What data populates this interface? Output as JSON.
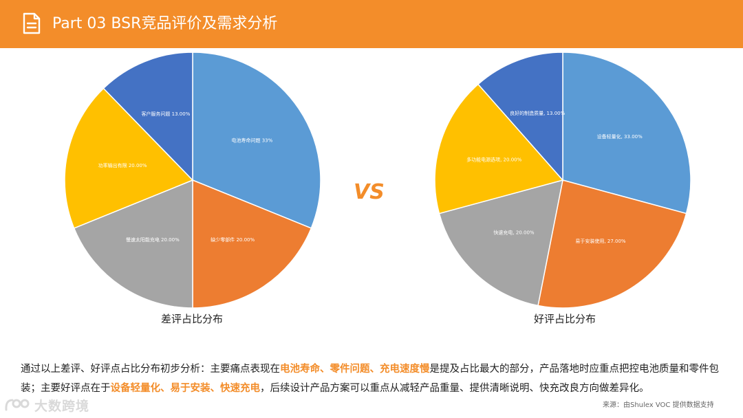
{
  "header": {
    "title": "Part 03  BSR竞品评价及需求分析"
  },
  "vs_text": "VS",
  "chart_data": [
    {
      "type": "pie",
      "title": "差评占比分布",
      "labels": [
        "电池寿命问题 33%",
        "缺少零部件 20.00%",
        "慢速太阳能充电 20.00%",
        "功率输出有限 20.00%",
        "客户服务问题 13.00%"
      ],
      "categories": [
        "电池寿命问题",
        "缺少零部件",
        "慢速太阳能充电",
        "功率输出有限",
        "客户服务问题"
      ],
      "values": [
        33,
        20,
        20,
        20,
        13
      ],
      "colors": [
        "#5B9BD5",
        "#ED7D31",
        "#A5A5A5",
        "#FFC000",
        "#4472C4"
      ]
    },
    {
      "type": "pie",
      "title": "好评占比分布",
      "labels": [
        "设备轻量化, 33.00%",
        "易于安装使用, 27.00%",
        "快速充电, 20.00%",
        "多功能电源选项, 20.00%",
        "良好的制造质量, 13.00%"
      ],
      "categories": [
        "设备轻量化",
        "易于安装使用",
        "快速充电",
        "多功能电源选项",
        "良好的制造质量"
      ],
      "values": [
        33,
        27,
        20,
        20,
        13
      ],
      "colors": [
        "#5B9BD5",
        "#ED7D31",
        "#A5A5A5",
        "#FFC000",
        "#4472C4"
      ]
    }
  ],
  "summary": {
    "p1": "通过以上差评、好评点占比分布初步分析：主要痛点表现在",
    "h1": "电池寿命、零件问题、充电速度慢",
    "p2": "是提及占比最大的部分，产品落地时应重点把控电池质量和零件包装；主要好评点在于",
    "h2": "设备轻量化、易于安装、快速充电",
    "p3": "，后续设计产品方案可以重点从减轻产品重量、提供清晰说明、快充改良方向做差异化。"
  },
  "source": "来源：由Shulex VOC 提供数据支持",
  "logo": {
    "text": "大数跨境"
  },
  "colors": {
    "accent": "#F38D2A"
  }
}
